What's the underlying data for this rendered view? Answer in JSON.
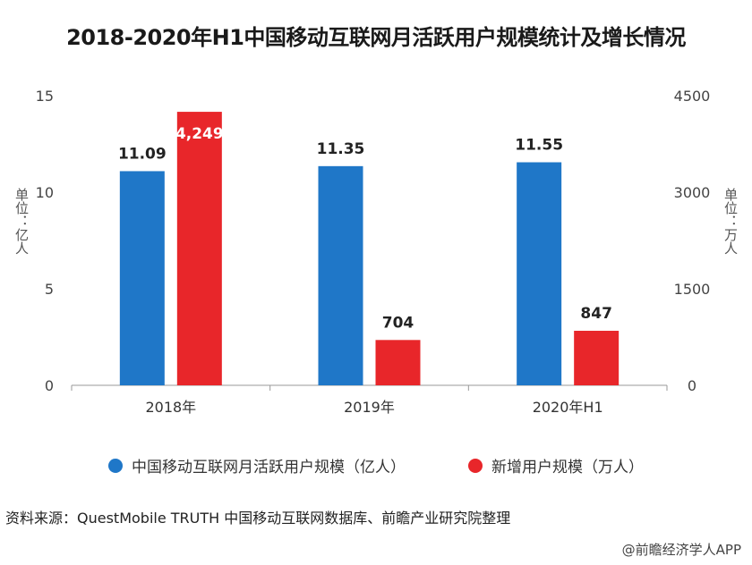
{
  "chart_data": {
    "type": "bar",
    "title": "2018-2020年H1中国移动互联网月活跃用户规模统计及增长情况",
    "categories": [
      "2018年",
      "2019年",
      "2020年H1"
    ],
    "series": [
      {
        "name": "中国移动互联网月活跃用户规模（亿人）",
        "axis": "left",
        "color": "#1f77c8",
        "values": [
          11.09,
          11.35,
          11.55
        ],
        "labels": [
          "11.09",
          "11.35",
          "11.55"
        ]
      },
      {
        "name": "新增用户规模（万人）",
        "axis": "right",
        "color": "#e8262a",
        "values": [
          4249,
          704,
          847
        ],
        "labels": [
          "4,249",
          "704",
          "847"
        ]
      }
    ],
    "y_left": {
      "label": "单位：亿人",
      "min": 0,
      "max": 15,
      "ticks": [
        "0",
        "5",
        "10",
        "15"
      ]
    },
    "y_right": {
      "label": "单位：万人",
      "min": 0,
      "max": 4500,
      "ticks": [
        "0",
        "1500",
        "3000",
        "4500"
      ]
    },
    "legend_position": "bottom",
    "grid": false
  },
  "source": "资料来源：QuestMobile TRUTH 中国移动互联网数据库、前瞻产业研究院整理",
  "credit": "@前瞻经济学人APP",
  "colors": {
    "blue": "#1f77c8",
    "red": "#e8262a"
  }
}
